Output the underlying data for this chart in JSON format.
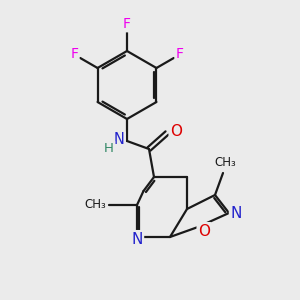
{
  "background_color": "#ebebeb",
  "bond_color": "#1a1a1a",
  "atom_colors": {
    "F": "#ee00ee",
    "N": "#2222cc",
    "O": "#dd0000",
    "H": "#338866",
    "C": "#1a1a1a"
  },
  "figure_size": [
    3.0,
    3.0
  ],
  "dpi": 100,
  "lw": 1.6
}
